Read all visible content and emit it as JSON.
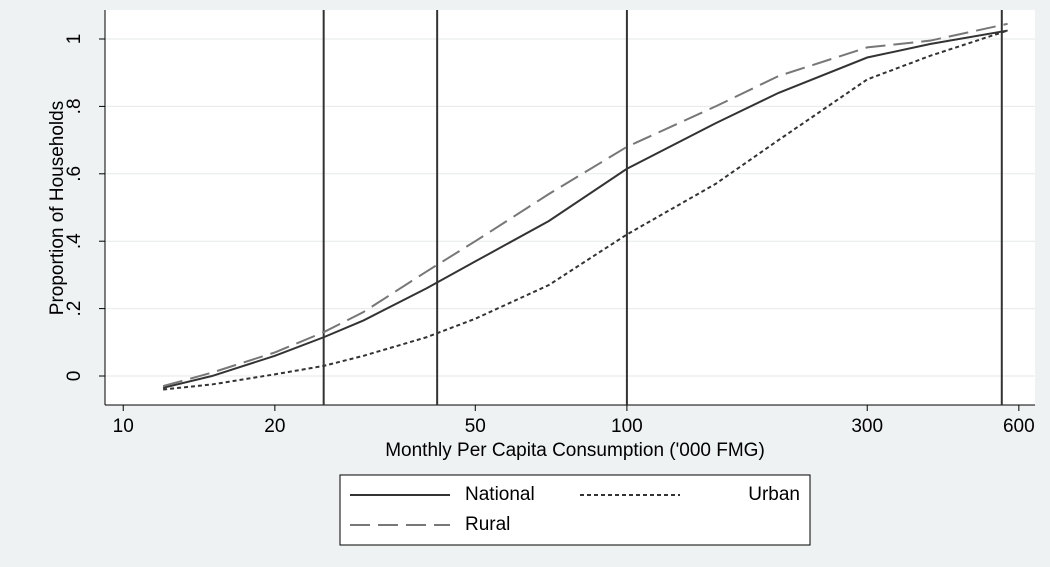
{
  "chart_data": {
    "type": "line",
    "xlabel": "Monthly Per Capita Consumption ('000 FMG)",
    "ylabel": "Proportion of Households",
    "x": [
      12,
      15,
      20,
      25,
      30,
      40,
      50,
      70,
      100,
      150,
      200,
      300,
      400,
      570
    ],
    "series": [
      {
        "name": "National",
        "color": "#333333",
        "dash": "solid",
        "values": [
          -0.035,
          0.0,
          0.06,
          0.115,
          0.165,
          0.26,
          0.34,
          0.46,
          0.615,
          0.75,
          0.84,
          0.945,
          0.985,
          1.025
        ]
      },
      {
        "name": "Urban",
        "color": "#333333",
        "dash": "short",
        "values": [
          -0.04,
          -0.025,
          0.005,
          0.03,
          0.06,
          0.115,
          0.17,
          0.27,
          0.42,
          0.57,
          0.7,
          0.88,
          0.95,
          1.025
        ]
      },
      {
        "name": "Rural",
        "color": "#777777",
        "dash": "long",
        "values": [
          -0.03,
          0.01,
          0.07,
          0.13,
          0.19,
          0.31,
          0.4,
          0.54,
          0.68,
          0.8,
          0.89,
          0.975,
          0.995,
          1.045
        ]
      }
    ],
    "reference_lines": [
      25,
      42,
      100,
      555
    ],
    "xscale": "log",
    "xlim": [
      9.2,
      646
    ],
    "xticks": [
      10,
      20,
      50,
      100,
      300,
      600
    ],
    "ylim": [
      -0.086,
      1.086
    ],
    "yticks": [
      0,
      {
        "value": 0.2,
        "label": ".2"
      },
      {
        "value": 0.4,
        "label": ".4"
      },
      {
        "value": 0.6,
        "label": ".6"
      },
      {
        "value": 0.8,
        "label": ".8"
      },
      1
    ],
    "grid": true,
    "legend": "bottom"
  }
}
